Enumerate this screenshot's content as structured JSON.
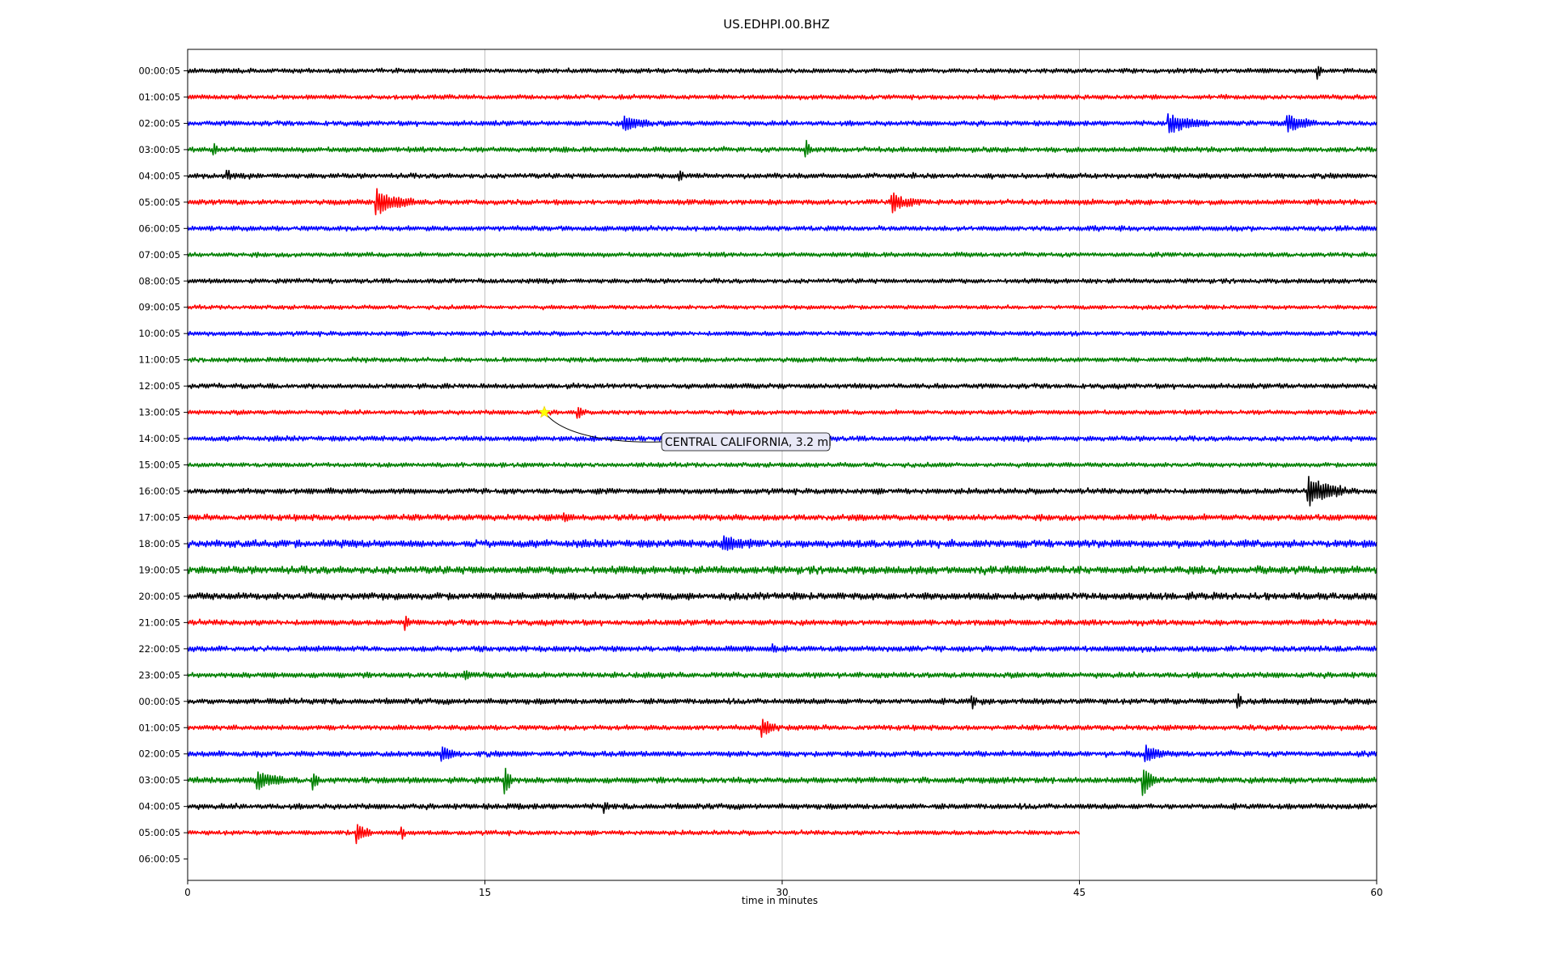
{
  "chart_data": {
    "type": "line",
    "title": "US.EDHPI.00.BHZ",
    "xlabel": "time in minutes",
    "ylabel": "",
    "xlim": [
      0,
      60
    ],
    "x_ticks": [
      "0",
      "15",
      "30",
      "45",
      "60"
    ],
    "grid": "vertical",
    "colors": [
      "#000000",
      "#ff0000",
      "#0000ff",
      "#008000"
    ],
    "row_labels": [
      "00:00:05",
      "01:00:05",
      "02:00:05",
      "03:00:05",
      "04:00:05",
      "05:00:05",
      "06:00:05",
      "07:00:05",
      "08:00:05",
      "09:00:05",
      "10:00:05",
      "11:00:05",
      "12:00:05",
      "13:00:05",
      "14:00:05",
      "15:00:05",
      "16:00:05",
      "17:00:05",
      "18:00:05",
      "19:00:05",
      "20:00:05",
      "21:00:05",
      "22:00:05",
      "23:00:05",
      "00:00:05",
      "01:00:05",
      "02:00:05",
      "03:00:05",
      "04:00:05",
      "05:00:05",
      "06:00:05"
    ],
    "trace_end_minute": [
      60,
      60,
      60,
      60,
      60,
      60,
      60,
      60,
      60,
      60,
      60,
      60,
      60,
      60,
      60,
      60,
      60,
      60,
      60,
      60,
      60,
      60,
      60,
      60,
      60,
      60,
      60,
      60,
      60,
      45,
      0
    ],
    "noise_level": [
      0.9,
      0.9,
      1.0,
      1.0,
      1.0,
      1.0,
      1.0,
      0.9,
      0.9,
      0.8,
      0.9,
      0.9,
      1.0,
      0.9,
      1.0,
      0.9,
      1.1,
      1.2,
      1.5,
      1.5,
      1.4,
      1.1,
      1.1,
      1.1,
      1.1,
      1.0,
      1.1,
      1.2,
      1.1,
      0.9,
      0
    ],
    "events": [
      {
        "row": 0,
        "minute": 57.0,
        "amp": 10,
        "dur": 0.3
      },
      {
        "row": 2,
        "minute": 22.0,
        "amp": 9,
        "dur": 1.5
      },
      {
        "row": 2,
        "minute": 49.5,
        "amp": 12,
        "dur": 2.0
      },
      {
        "row": 2,
        "minute": 55.5,
        "amp": 10,
        "dur": 1.5
      },
      {
        "row": 3,
        "minute": 1.3,
        "amp": 7,
        "dur": 0.2
      },
      {
        "row": 3,
        "minute": 31.2,
        "amp": 11,
        "dur": 0.3
      },
      {
        "row": 4,
        "minute": 2.0,
        "amp": 7,
        "dur": 0.2
      },
      {
        "row": 4,
        "minute": 24.8,
        "amp": 7,
        "dur": 0.2
      },
      {
        "row": 5,
        "minute": 9.5,
        "amp": 16,
        "dur": 2.0
      },
      {
        "row": 5,
        "minute": 35.5,
        "amp": 12,
        "dur": 1.5
      },
      {
        "row": 13,
        "minute": 19.7,
        "amp": 7,
        "dur": 0.4
      },
      {
        "row": 16,
        "minute": 56.5,
        "amp": 20,
        "dur": 2.0
      },
      {
        "row": 17,
        "minute": 19.0,
        "amp": 6,
        "dur": 0.5
      },
      {
        "row": 18,
        "minute": 27.0,
        "amp": 8,
        "dur": 1.5
      },
      {
        "row": 21,
        "minute": 11.0,
        "amp": 9,
        "dur": 0.2
      },
      {
        "row": 22,
        "minute": 29.5,
        "amp": 6,
        "dur": 0.3
      },
      {
        "row": 23,
        "minute": 14.0,
        "amp": 6,
        "dur": 0.3
      },
      {
        "row": 24,
        "minute": 39.6,
        "amp": 9,
        "dur": 0.2
      },
      {
        "row": 24,
        "minute": 53.0,
        "amp": 9,
        "dur": 0.2
      },
      {
        "row": 25,
        "minute": 29.0,
        "amp": 10,
        "dur": 0.9
      },
      {
        "row": 26,
        "minute": 12.8,
        "amp": 9,
        "dur": 1.0
      },
      {
        "row": 26,
        "minute": 48.3,
        "amp": 11,
        "dur": 1.0
      },
      {
        "row": 27,
        "minute": 3.5,
        "amp": 11,
        "dur": 1.5
      },
      {
        "row": 27,
        "minute": 6.3,
        "amp": 11,
        "dur": 0.3
      },
      {
        "row": 27,
        "minute": 16.0,
        "amp": 22,
        "dur": 0.4
      },
      {
        "row": 27,
        "minute": 48.2,
        "amp": 22,
        "dur": 0.6
      },
      {
        "row": 28,
        "minute": 21.0,
        "amp": 7,
        "dur": 0.3
      },
      {
        "row": 29,
        "minute": 8.5,
        "amp": 13,
        "dur": 0.8
      },
      {
        "row": 29,
        "minute": 10.8,
        "amp": 8,
        "dur": 0.2
      }
    ],
    "annotations": [
      {
        "text": "CENTRAL CALIFORNIA, 3.2 ml",
        "row": 13,
        "minute": 18.0,
        "marker": "star",
        "marker_color": "#ffff00"
      }
    ]
  }
}
